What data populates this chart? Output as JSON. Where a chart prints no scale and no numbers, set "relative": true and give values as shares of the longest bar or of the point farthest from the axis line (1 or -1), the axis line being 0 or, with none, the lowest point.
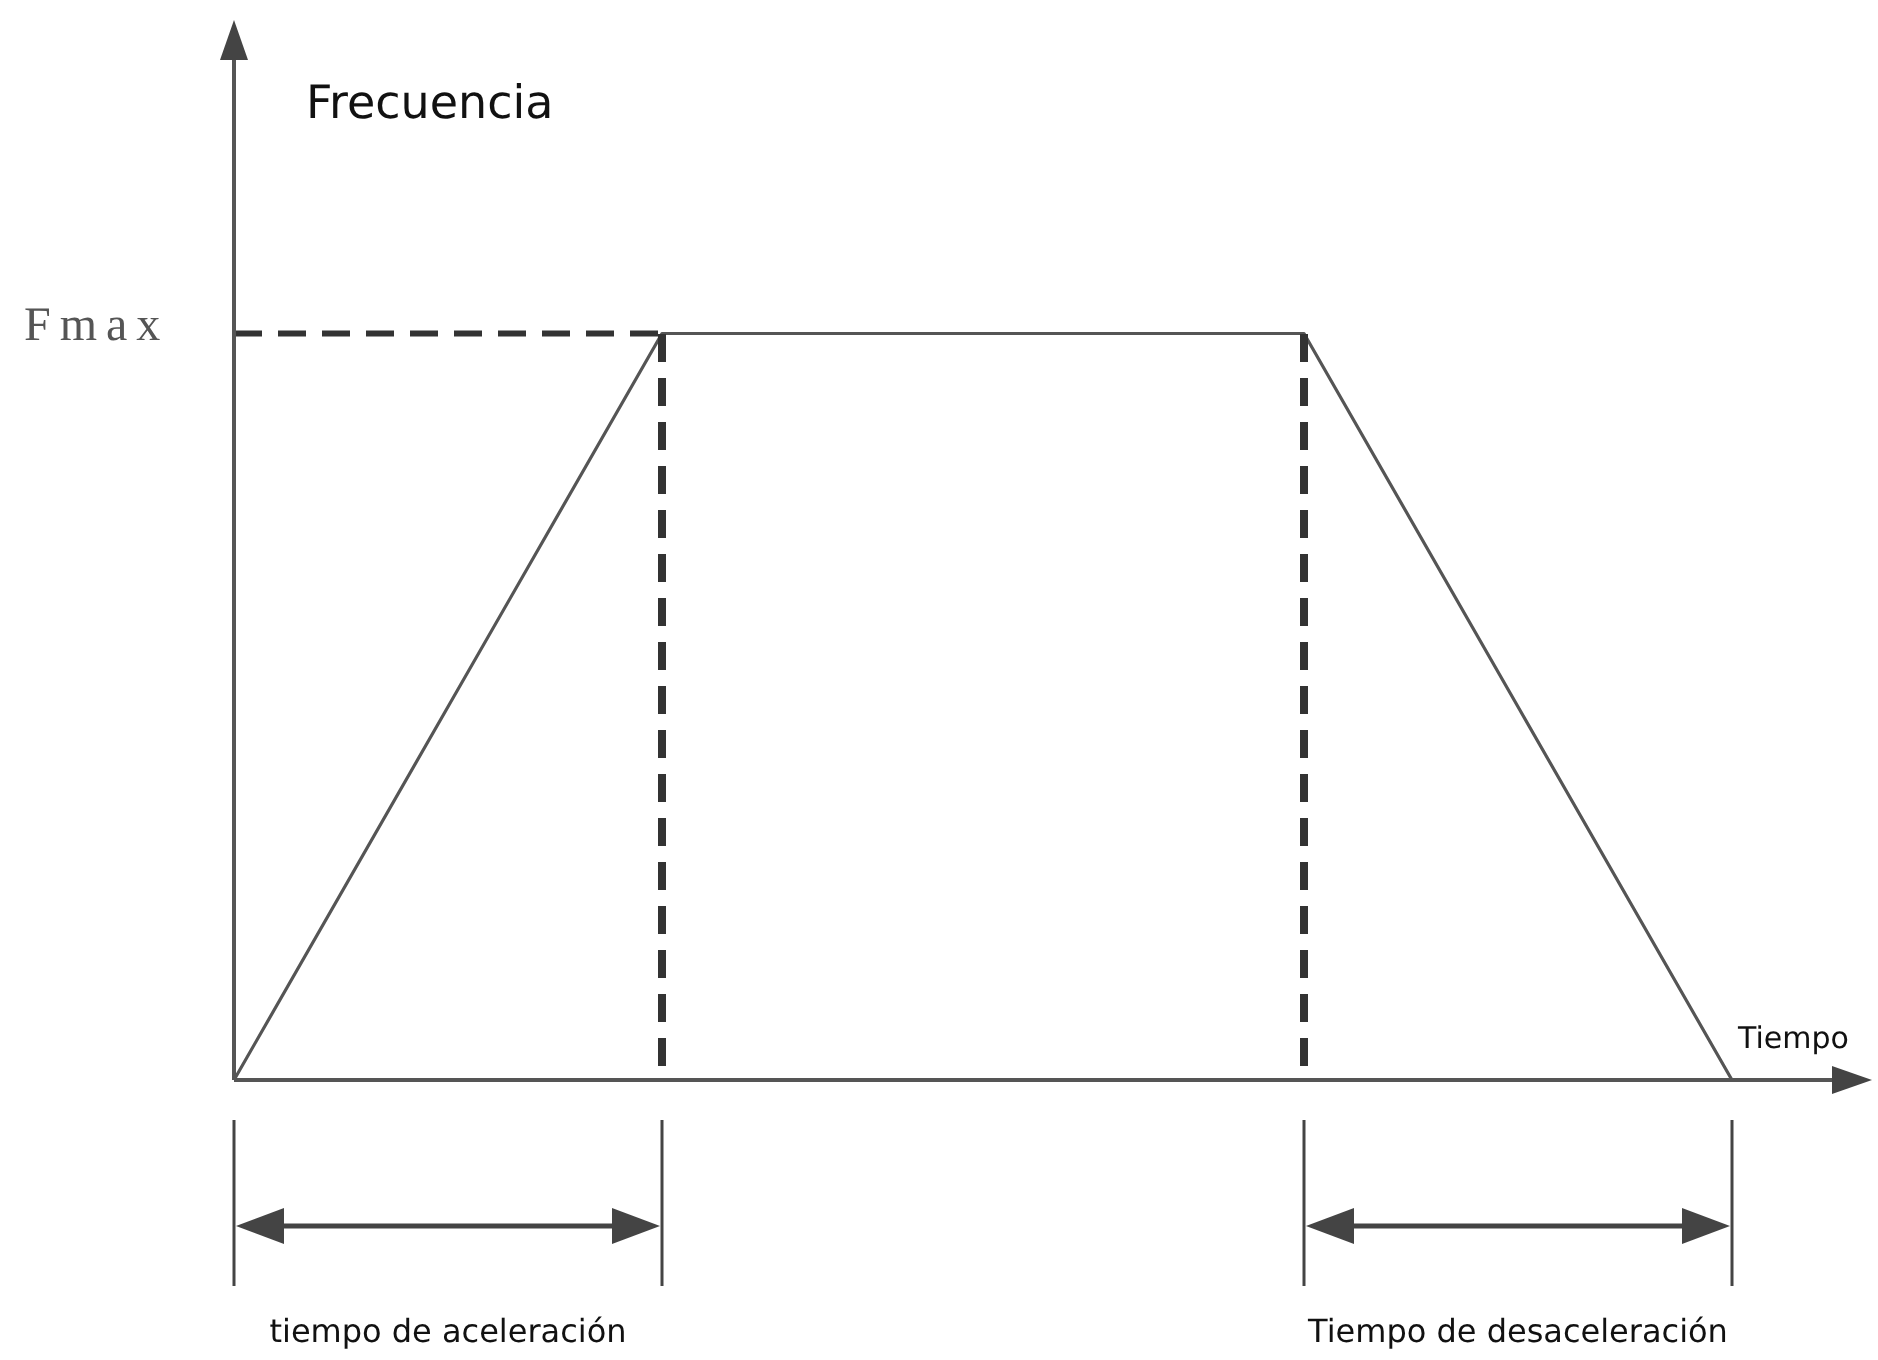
{
  "chart_data": {
    "type": "line",
    "relative": true,
    "ylabel": "Frecuencia",
    "xlabel": "Tiempo",
    "marker": "none",
    "categories": [
      null,
      null,
      null,
      null,
      null,
      null,
      null,
      null
    ],
    "series": [
      {
        "color": "#555555",
        "values": [
          0,
          0.5,
          1,
          1,
          1,
          1,
          0.5,
          0
        ]
      }
    ],
    "ref_lines": [
      {
        "axis": "y",
        "value": 1,
        "label": "Fmax",
        "color": "#333333",
        "line_style": "dashed"
      }
    ],
    "annotations": [
      "tiempo de aceleración",
      "Tiempo de desaceleración"
    ]
  }
}
